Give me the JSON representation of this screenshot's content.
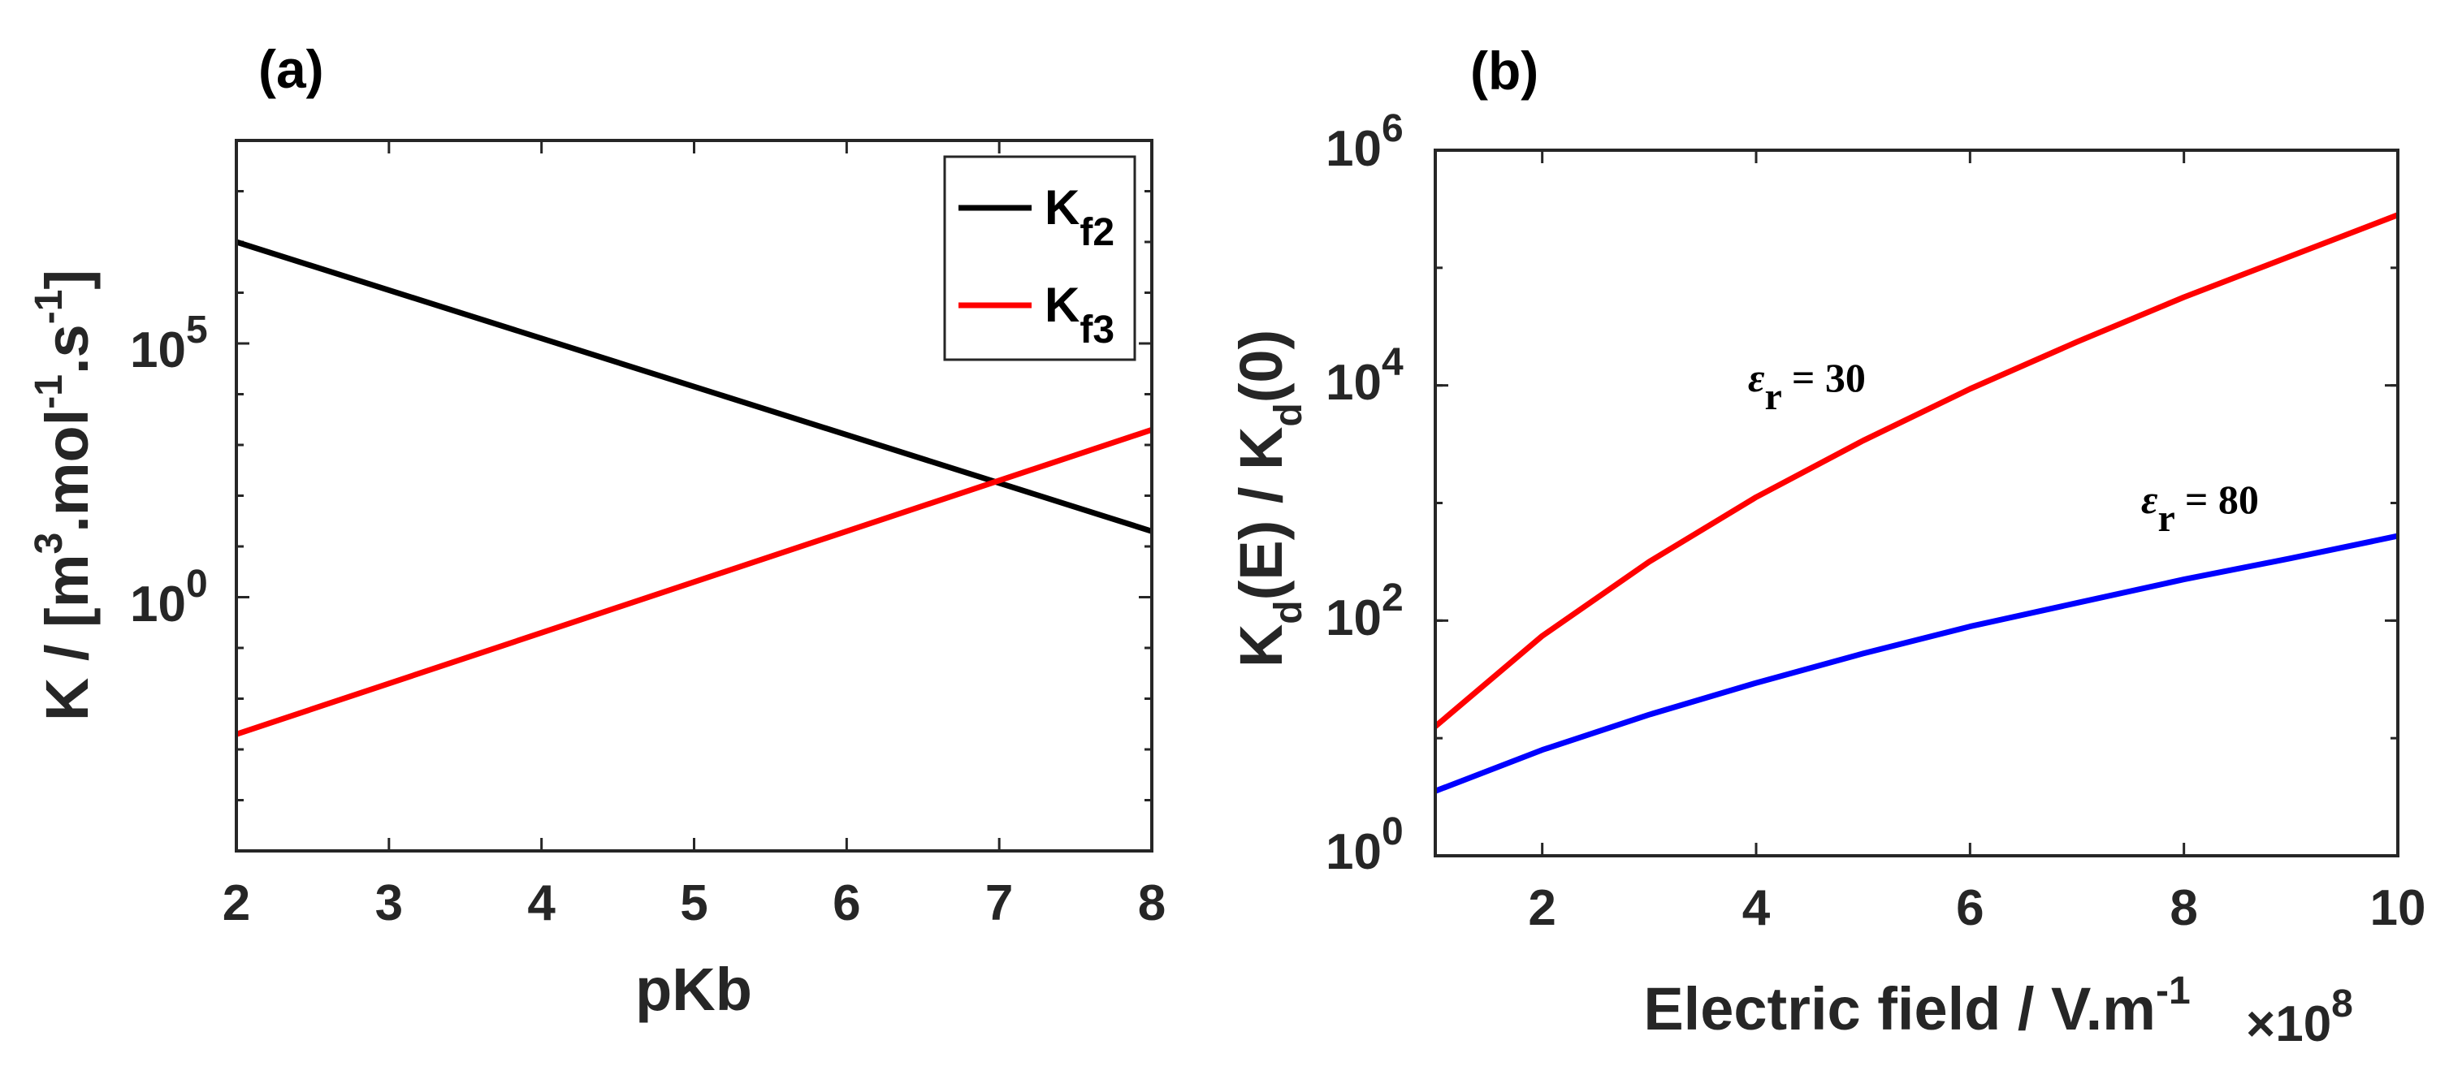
{
  "chart_data": [
    {
      "type": "line",
      "panel_label": "(a)",
      "xlabel": "pKb",
      "ylabel": {
        "base": "K / [m",
        "sup1": "3",
        "mid1": ".mol",
        "sup2": "-1",
        "mid2": ".s",
        "sup3": "-1",
        "end": "]"
      },
      "yscale": "log",
      "xlim": [
        2,
        8
      ],
      "ylim_log10": [
        -5,
        9
      ],
      "x_ticks": [
        "2",
        "3",
        "4",
        "5",
        "6",
        "7",
        "8"
      ],
      "y_ticks": [
        {
          "base": "10",
          "exp": "0"
        },
        {
          "base": "10",
          "exp": "5"
        }
      ],
      "series": [
        {
          "name": "K",
          "sub": "f2",
          "color": "#000000",
          "x": [
            2,
            8
          ],
          "log10_y": [
            7.0,
            1.3
          ]
        },
        {
          "name": "K",
          "sub": "f3",
          "color": "#ff0000",
          "x": [
            2,
            8
          ],
          "log10_y": [
            -2.7,
            3.3
          ]
        }
      ],
      "legend_position": "top-right"
    },
    {
      "type": "line",
      "panel_label": "(b)",
      "xlabel": {
        "base": "Electric field / V.m",
        "sup": "-1"
      },
      "x_multiplier": {
        "prefix": "×10",
        "exp": "8"
      },
      "ylabel": {
        "k1": "K",
        "s1": "d",
        "m1": "(E) / K",
        "s2": "d",
        "e1": "(0)"
      },
      "yscale": "log",
      "xlim": [
        1,
        10
      ],
      "ylim_log10": [
        0,
        6
      ],
      "x_ticks": [
        "2",
        "4",
        "6",
        "8",
        "10"
      ],
      "y_ticks": [
        {
          "base": "10",
          "exp": "0"
        },
        {
          "base": "10",
          "exp": "2"
        },
        {
          "base": "10",
          "exp": "4"
        },
        {
          "base": "10",
          "exp": "6"
        }
      ],
      "series": [
        {
          "name": "εr = 30",
          "color": "#ff0000",
          "x": [
            1,
            2,
            3,
            4,
            5,
            6,
            7,
            8,
            9,
            10
          ],
          "log10_y": [
            1.1,
            1.87,
            2.5,
            3.05,
            3.53,
            3.97,
            4.37,
            4.75,
            5.1,
            5.45
          ]
        },
        {
          "name": "εr = 80",
          "color": "#0000ff",
          "x": [
            1,
            2,
            3,
            4,
            5,
            6,
            7,
            8,
            9,
            10
          ],
          "log10_y": [
            0.55,
            0.9,
            1.2,
            1.47,
            1.72,
            1.95,
            2.15,
            2.35,
            2.53,
            2.72
          ]
        }
      ],
      "annotations": [
        {
          "eps": "ε",
          "sub": "r",
          "text": "= 30"
        },
        {
          "eps": "ε",
          "sub": "r",
          "text": "= 80"
        }
      ]
    }
  ]
}
